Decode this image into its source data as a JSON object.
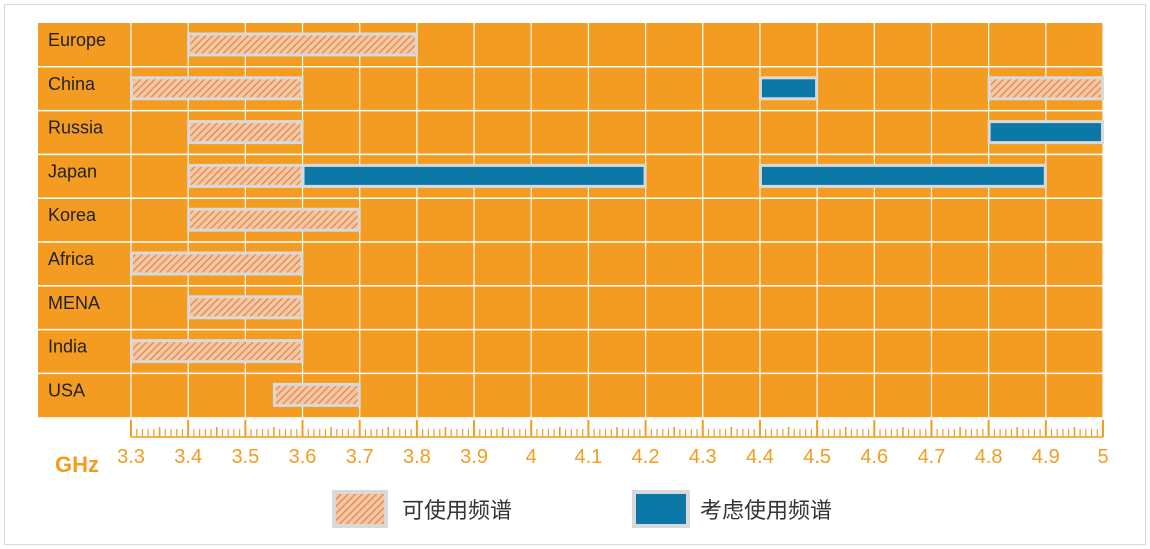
{
  "chart_data": {
    "type": "range-bar",
    "unit": "GHz",
    "xlim": [
      3.3,
      5
    ],
    "x_ticks": [
      "3.3",
      "3.4",
      "3.5",
      "3.6",
      "3.7",
      "3.8",
      "3.9",
      "4",
      "4.1",
      "4.2",
      "4.3",
      "4.4",
      "4.5",
      "4.6",
      "4.7",
      "4.8",
      "4.9",
      "5"
    ],
    "regions": [
      {
        "name": "Europe",
        "available": [
          [
            3.4,
            3.8
          ]
        ],
        "considered": []
      },
      {
        "name": "China",
        "available": [
          [
            3.3,
            3.6
          ],
          [
            4.8,
            5.0
          ]
        ],
        "considered": [
          [
            4.4,
            4.5
          ]
        ]
      },
      {
        "name": "Russia",
        "available": [
          [
            3.4,
            3.6
          ]
        ],
        "considered": [
          [
            4.8,
            5.0
          ]
        ]
      },
      {
        "name": "Japan",
        "available": [
          [
            3.4,
            3.6
          ]
        ],
        "considered": [
          [
            3.6,
            4.2
          ],
          [
            4.4,
            4.9
          ]
        ]
      },
      {
        "name": "Korea",
        "available": [
          [
            3.4,
            3.7
          ]
        ],
        "considered": []
      },
      {
        "name": "Africa",
        "available": [
          [
            3.3,
            3.6
          ]
        ],
        "considered": []
      },
      {
        "name": "MENA",
        "available": [
          [
            3.4,
            3.6
          ]
        ],
        "considered": []
      },
      {
        "name": "India",
        "available": [
          [
            3.3,
            3.6
          ]
        ],
        "considered": []
      },
      {
        "name": "USA",
        "available": [
          [
            3.55,
            3.7
          ]
        ],
        "considered": []
      }
    ],
    "legend": {
      "available": "可使用频谱",
      "considered": "考虑使用频谱"
    },
    "colors": {
      "background": "#F39C21",
      "grid": "#FFFFFF",
      "hatch_fill": "#F2C8A8",
      "hatch_stripe": "#E8823A",
      "bar_border": "#D9D9D9",
      "considered": "#0B78A8",
      "axis": "#F39C21",
      "row_label": "#222222"
    }
  }
}
